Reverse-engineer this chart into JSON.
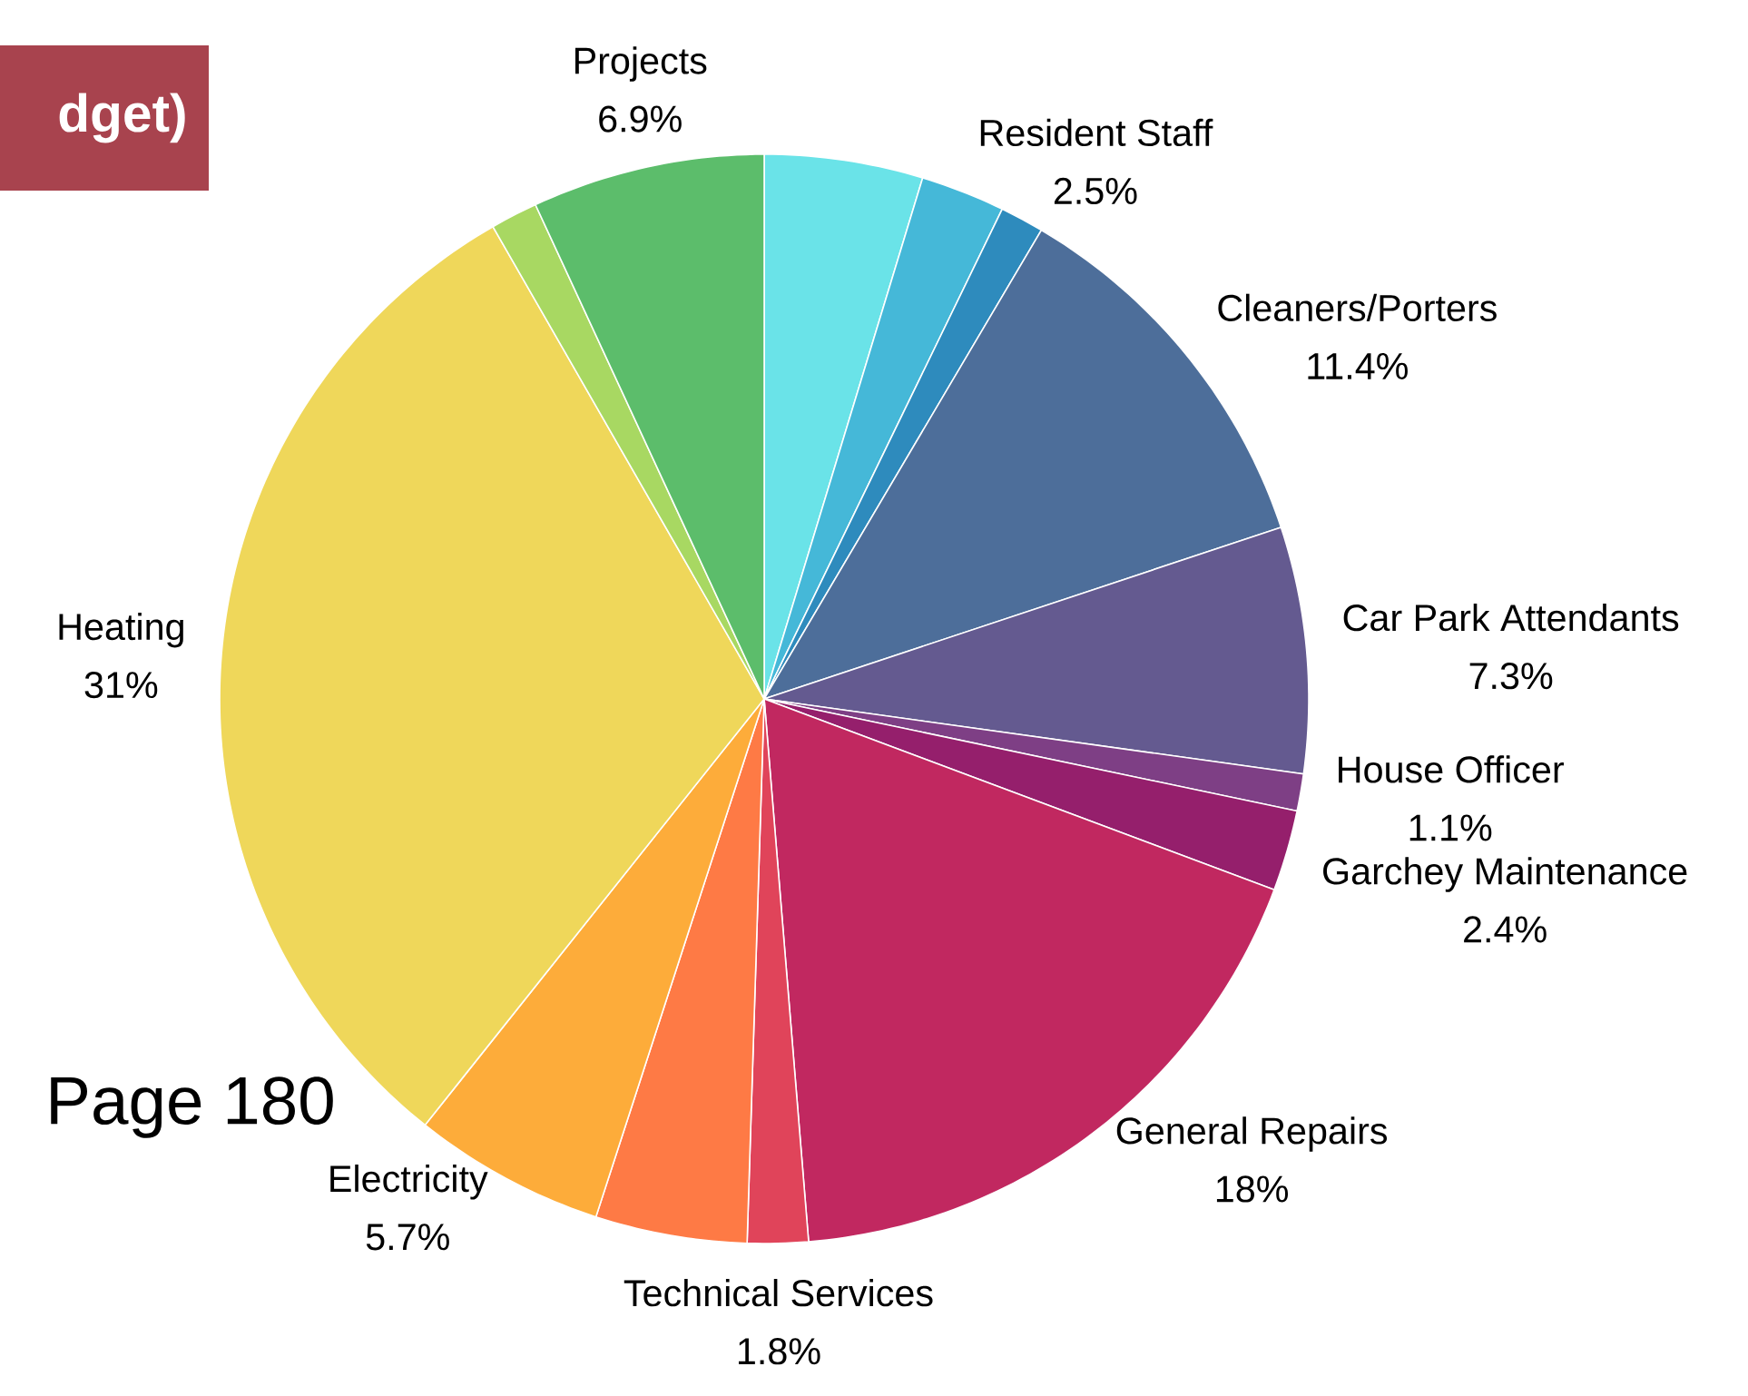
{
  "chart_data": {
    "type": "pie",
    "title": "dget)",
    "categories": [
      null,
      "Resident Staff",
      null,
      "Cleaners/Porters",
      "Car Park Attendants",
      "House Officer",
      "Garchey Maintenance",
      "General Repairs",
      "Technical Services",
      null,
      "Electricity",
      "Heating",
      null,
      "Projects"
    ],
    "values": [
      4.7,
      2.5,
      1.3,
      11.4,
      7.3,
      1.1,
      2.4,
      18,
      1.8,
      4.5,
      5.7,
      31,
      1.4,
      6.9
    ],
    "value_labels": [
      null,
      "2.5%",
      null,
      "11.4%",
      "7.3%",
      "1.1%",
      "2.4%",
      "18%",
      "1.8%",
      null,
      "5.7%",
      "31%",
      null,
      "6.9%"
    ],
    "colors": [
      "#6ae3e8",
      "#45b8d8",
      "#2e8bbd",
      "#4d6e9a",
      "#645a90",
      "#7e3f85",
      "#951f6c",
      "#c12860",
      "#e0445a",
      "#fe7a45",
      "#fdac3a",
      "#efd75a",
      "#a8d862",
      "#5cbd6b"
    ],
    "annotations": [
      "Page 180"
    ]
  }
}
